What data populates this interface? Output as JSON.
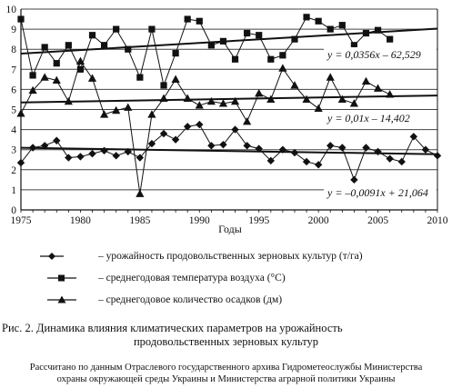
{
  "chart_data": {
    "type": "line",
    "xlabel": "Годы",
    "ylabel": "",
    "xlim": [
      1975,
      2010
    ],
    "ylim": [
      0,
      10
    ],
    "x_ticks": [
      1975,
      1980,
      1985,
      1990,
      1995,
      2000,
      2005,
      2010
    ],
    "y_ticks": [
      0,
      1,
      2,
      3,
      4,
      5,
      6,
      7,
      8,
      9,
      10
    ],
    "grid": "horizontal",
    "x": [
      1975,
      1976,
      1977,
      1978,
      1979,
      1980,
      1981,
      1982,
      1983,
      1984,
      1985,
      1986,
      1987,
      1988,
      1989,
      1990,
      1991,
      1992,
      1993,
      1994,
      1995,
      1996,
      1997,
      1998,
      1999,
      2000,
      2001,
      2002,
      2003,
      2004,
      2005,
      2006,
      2007,
      2008,
      2009,
      2010
    ],
    "series": [
      {
        "name": "– урожайность продовольственных зерновых культур (т/га)",
        "marker": "diamond",
        "values": [
          2.35,
          3.1,
          3.2,
          3.45,
          2.6,
          2.65,
          2.8,
          2.95,
          2.7,
          2.9,
          2.6,
          3.3,
          3.8,
          3.5,
          4.15,
          4.25,
          3.2,
          3.25,
          4.0,
          3.2,
          3.05,
          2.45,
          3.0,
          2.85,
          2.4,
          2.25,
          3.2,
          3.1,
          1.5,
          3.1,
          2.9,
          2.55,
          2.4,
          3.65,
          3.0,
          2.7
        ]
      },
      {
        "name": "– среднегодовая температура воздуха (°С)",
        "marker": "square",
        "values": [
          9.5,
          6.7,
          8.1,
          7.3,
          8.2,
          7.0,
          8.7,
          8.2,
          9.0,
          8.0,
          6.6,
          9.0,
          6.2,
          7.8,
          9.5,
          9.4,
          8.2,
          8.4,
          7.5,
          8.8,
          8.7,
          7.5,
          7.7,
          8.5,
          9.6,
          9.4,
          9.0,
          9.2,
          8.2,
          8.8,
          8.95,
          8.5,
          null,
          null,
          null,
          null
        ]
      },
      {
        "name": "– среднегодовое количество осадков (дм)",
        "marker": "triangle",
        "values": [
          4.8,
          5.95,
          6.6,
          6.45,
          5.4,
          7.4,
          6.55,
          4.75,
          4.95,
          5.1,
          0.8,
          4.75,
          5.55,
          6.5,
          5.55,
          5.2,
          5.4,
          5.3,
          5.4,
          4.4,
          5.8,
          5.5,
          7.05,
          6.2,
          5.5,
          5.05,
          6.6,
          5.5,
          5.3,
          6.4,
          6.05,
          5.75,
          null,
          null,
          null,
          null
        ]
      }
    ],
    "trendlines": [
      {
        "label": "y = 0,0356x – 62,529",
        "slope": 0.0356,
        "intercept": -62.529
      },
      {
        "label": "y = 0,01x – 14,402",
        "slope": 0.01,
        "intercept": -14.402
      },
      {
        "label": "y = –0,0091x + 21,064",
        "slope": -0.0091,
        "intercept": 21.064
      }
    ]
  },
  "caption": {
    "line1": "Рис. 2. Динамика влияния климатических параметров на урожайность",
    "line2": "продовольственных зерновых культур"
  },
  "note": {
    "line1": "Рассчитано по данным Отраслевого государственного архива Гидрометеослужбы Министерства",
    "line2": "охраны окружающей среды Украины и Министерства аграрной политики Украины"
  }
}
